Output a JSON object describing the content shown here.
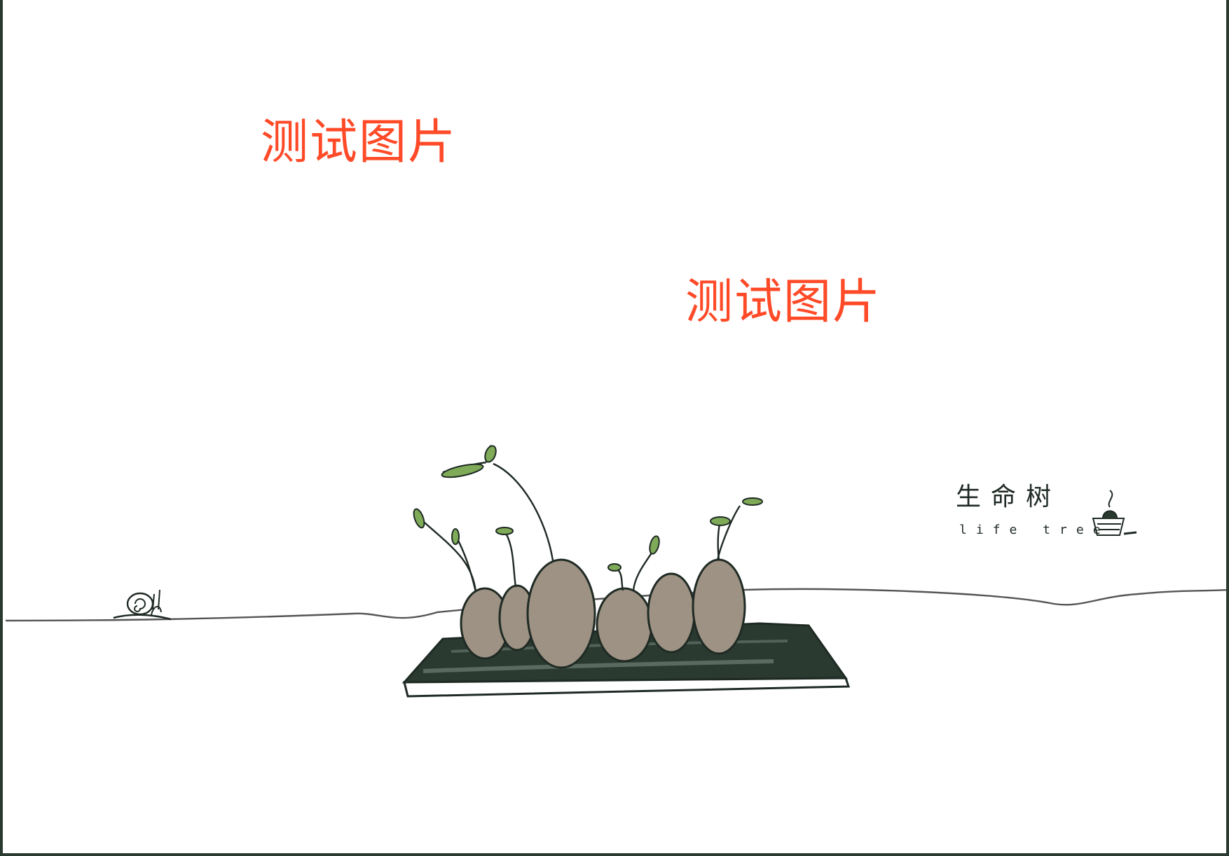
{
  "watermarks": [
    "测试图片",
    "测试图片"
  ],
  "logo": {
    "title_cn": "生命树",
    "title_en": "life tree"
  },
  "colors": {
    "watermark": "#ff4a28",
    "ink": "#1f2a24",
    "stone": "#9d9283",
    "sprout": "#6f9a48",
    "frame": "#2a3a30"
  }
}
